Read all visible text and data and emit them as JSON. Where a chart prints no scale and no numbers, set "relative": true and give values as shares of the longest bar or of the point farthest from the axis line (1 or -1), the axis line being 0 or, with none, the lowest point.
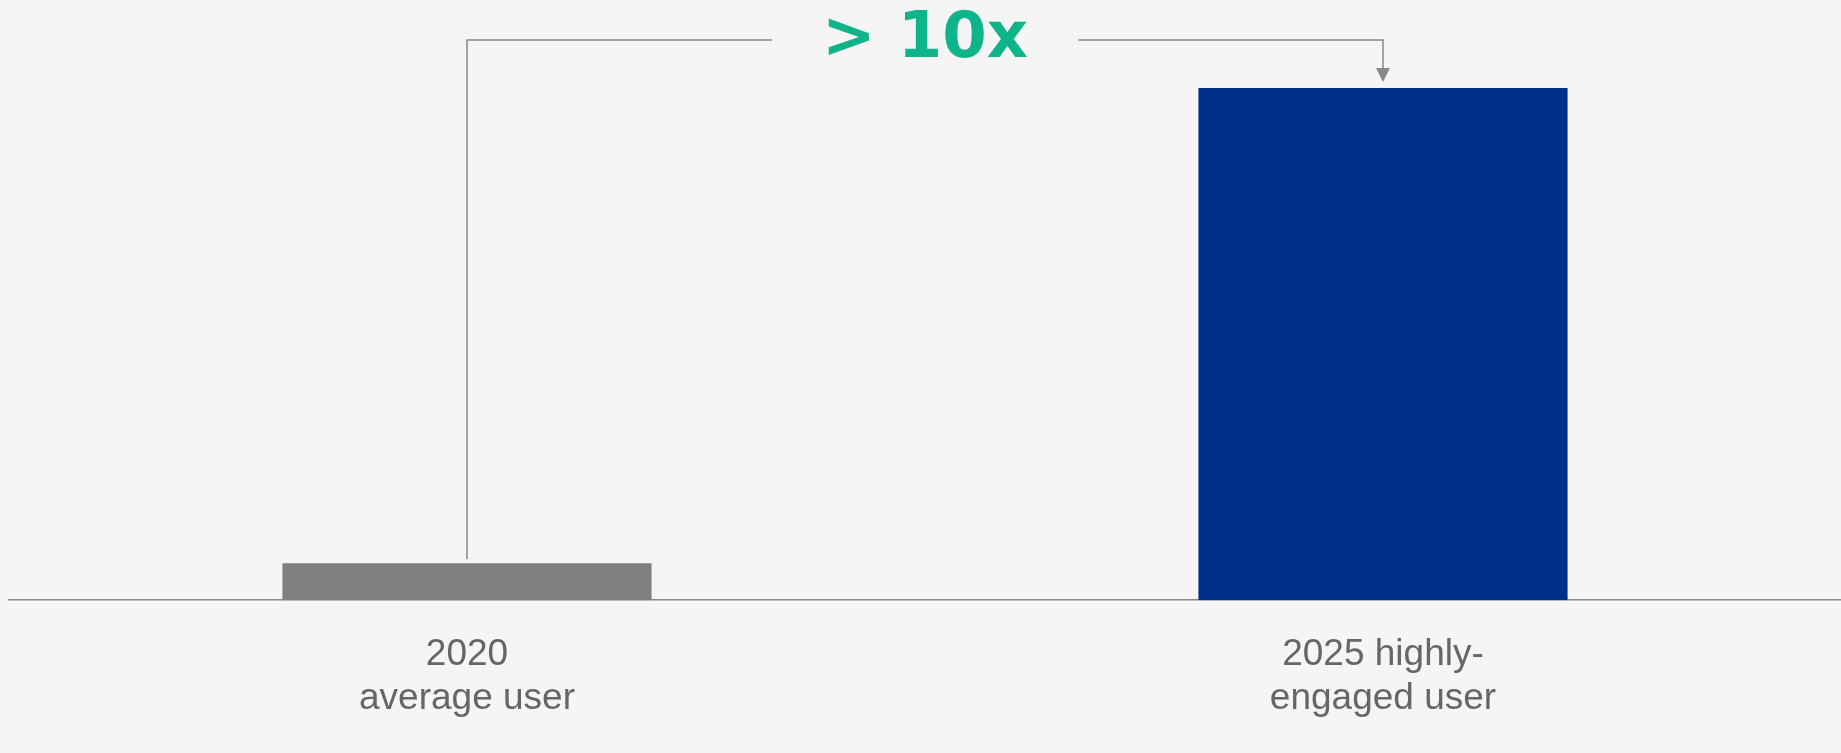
{
  "chart_data": {
    "type": "bar",
    "relative": true,
    "categories": [
      "2020\naverage user",
      "2025 highly-\nengaged user"
    ],
    "colors": [
      "#808080",
      "#002f87"
    ],
    "values": [
      0.072,
      1
    ],
    "annotations": [
      "> 10x"
    ],
    "grid": false,
    "legend": false
  }
}
